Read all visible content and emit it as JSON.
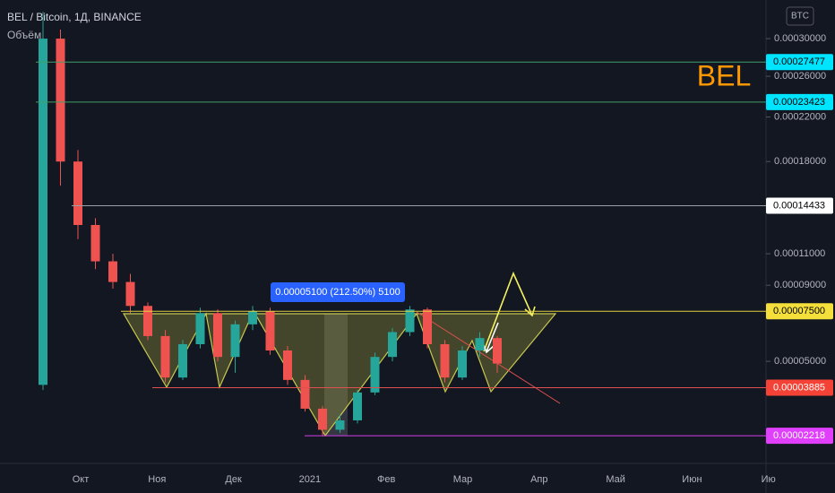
{
  "chart_data": {
    "type": "candlestick",
    "title": "BEL / Bitcoin, 1Д, BINANCE",
    "subtitle": "Объём",
    "currency": "BTC",
    "symbol": "BEL",
    "annotation": "0.00005100 (212.50%) 5100",
    "yscale": "sqrt",
    "up_color": "#26a69a",
    "down_color": "#ef5350",
    "categories": [
      "Окт",
      "Ноя",
      "Дек",
      "2021",
      "Фев",
      "Мар",
      "Апр",
      "Май",
      "Июн",
      "Ию"
    ],
    "open": [
      4e-05,
      0.0003,
      0.00018,
      0.00013,
      0.000105,
      9.2e-05,
      7.8e-05,
      6.2e-05,
      4.3e-05,
      5.8e-05,
      7.4e-05,
      5.2e-05,
      6.8e-05,
      7.5e-05,
      5.5e-05,
      4.2e-05,
      3.1e-05,
      2.4e-05,
      2.7e-05,
      3.7e-05,
      5.2e-05,
      6.4e-05,
      7.6e-05,
      5.8e-05,
      4.3e-05,
      5.5e-05,
      6.1e-05
    ],
    "high": [
      0.00033,
      0.00031,
      0.00019,
      0.000135,
      0.00011,
      9.7e-05,
      8e-05,
      6.5e-05,
      6e-05,
      7.7e-05,
      7.6e-05,
      7e-05,
      7.8e-05,
      7.7e-05,
      5.7e-05,
      4.4e-05,
      3.2e-05,
      2.9e-05,
      3.8e-05,
      5.4e-05,
      6.6e-05,
      7.8e-05,
      7.7e-05,
      6e-05,
      5.7e-05,
      6.4e-05,
      6.2e-05
    ],
    "low": [
      3.8e-05,
      0.00016,
      0.00012,
      0.0001,
      8.8e-05,
      7.4e-05,
      6e-05,
      4.1e-05,
      4.2e-05,
      5.6e-05,
      5e-05,
      4.5e-05,
      6.5e-05,
      5.3e-05,
      4e-05,
      3e-05,
      2.2e-05,
      2.3e-05,
      2.6e-05,
      3.6e-05,
      5e-05,
      6.2e-05,
      5.6e-05,
      4.1e-05,
      4.2e-05,
      5.2e-05,
      4.5e-05
    ],
    "close": [
      0.0003,
      0.00018,
      0.00013,
      0.000105,
      9.2e-05,
      7.8e-05,
      6.2e-05,
      4.3e-05,
      5.8e-05,
      7.4e-05,
      5.2e-05,
      6.8e-05,
      7.5e-05,
      5.5e-05,
      4.2e-05,
      3.1e-05,
      2.4e-05,
      2.7e-05,
      3.7e-05,
      5.2e-05,
      6.4e-05,
      7.6e-05,
      5.8e-05,
      4.3e-05,
      5.5e-05,
      6.1e-05,
      4.9e-05
    ],
    "ylim": [
      1.51e-05,
      0.000344
    ],
    "yticks": [
      {
        "value": 0.0003,
        "label": "0.00030000"
      },
      {
        "value": 0.00026,
        "label": "0.00026000"
      },
      {
        "value": 0.00022,
        "label": "0.00022000"
      },
      {
        "value": 0.00018,
        "label": "0.00018000"
      },
      {
        "value": 0.00011,
        "label": "0.00011000"
      },
      {
        "value": 9e-05,
        "label": "0.00009000"
      },
      {
        "value": 5e-05,
        "label": "0.00005000"
      }
    ],
    "levels": [
      {
        "value": 0.00027477,
        "label": "0.00027477",
        "color": "#00e5ff",
        "line": "#3f9f6a",
        "text": "#000000"
      },
      {
        "value": 0.00023423,
        "label": "0.00023423",
        "color": "#00e5ff",
        "line": "#3f9f6a",
        "text": "#000000"
      },
      {
        "value": 0.00014433,
        "label": "0.00014433",
        "color": "#ffffff",
        "line": "#9aa0a6",
        "text": "#000000"
      },
      {
        "value": 7.5e-05,
        "label": "0.00007500",
        "color": "#f5e03b",
        "line": "#e0d040",
        "text": "#000000"
      },
      {
        "value": 3.885e-05,
        "label": "0.00003885",
        "color": "#f44336",
        "line": "#e05050",
        "text": "#ffffff"
      },
      {
        "value": 2.218e-05,
        "label": "0.00002218",
        "color": "#e040fb",
        "line": "#d040e8",
        "text": "#ffffff"
      }
    ]
  }
}
